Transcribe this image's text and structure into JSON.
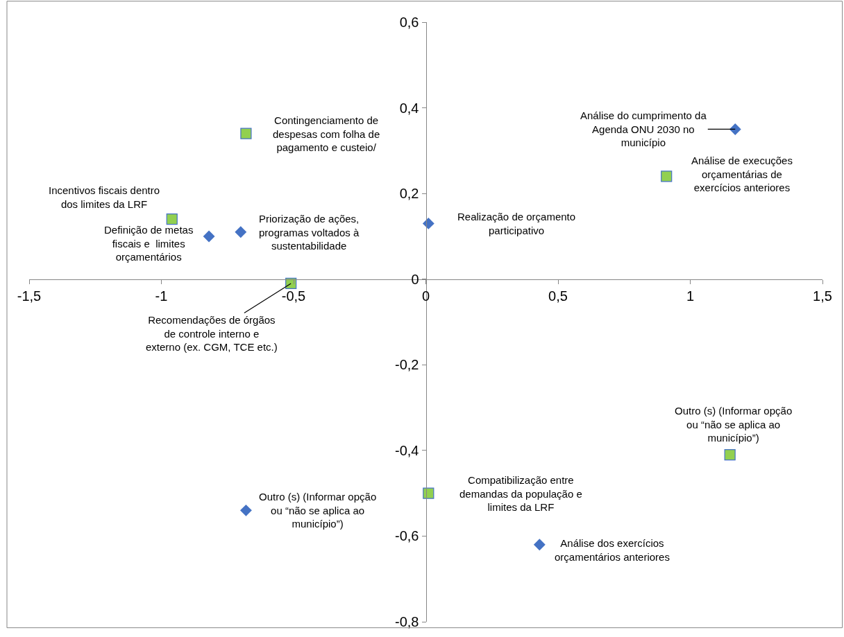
{
  "chart_data": {
    "type": "scatter",
    "series": [
      {
        "color": "#4472c4",
        "marker": "diamond",
        "x": [
          -0.82,
          -0.7,
          0.01,
          1.17,
          -0.68,
          0.43
        ],
        "values": [
          0.1,
          0.11,
          0.13,
          0.35,
          -0.54,
          -0.62
        ]
      },
      {
        "color": "#92d050",
        "marker": "square",
        "x": [
          -0.68,
          -0.96,
          -0.51,
          0.91,
          1.15,
          0.01
        ],
        "values": [
          0.34,
          0.14,
          -0.01,
          0.24,
          -0.41,
          -0.5
        ]
      }
    ],
    "annotations": [
      {
        "text": "Definição de metas\nfiscais e  limites\norçamentários",
        "x": -0.82,
        "y": 0.1
      },
      {
        "text": "Priorização de ações,\nprogramas voltados à\nsustentabilidade",
        "x": -0.7,
        "y": 0.11
      },
      {
        "text": "Realização de orçamento\nparticipativo",
        "x": 0.01,
        "y": 0.13
      },
      {
        "text": "Análise do cumprimento da\nAgenda ONU 2030 no\nmunicípio",
        "x": 1.17,
        "y": 0.35
      },
      {
        "text": "Outro (s) (Informar opção\nou “não se aplica ao\nmunicípio”)",
        "x": -0.68,
        "y": -0.54
      },
      {
        "text": "Análise dos exercícios\norçamentários anteriores",
        "x": 0.43,
        "y": -0.62
      },
      {
        "text": "Contingenciamento de\ndespesas com folha de\npagamento e custeio/",
        "x": -0.68,
        "y": 0.34
      },
      {
        "text": "Incentivos fiscais dentro\ndos limites da LRF",
        "x": -0.96,
        "y": 0.14
      },
      {
        "text": "Recomendações de órgãos\nde controle interno e\nexterno (ex. CGM, TCE etc.)",
        "x": -0.51,
        "y": -0.01
      },
      {
        "text": "Análise de execuções\norçamentárias de\nexercícios anteriores",
        "x": 0.91,
        "y": 0.24
      },
      {
        "text": "Outro (s) (Informar opção\nou “não se aplica ao\nmunicípio”)",
        "x": 1.15,
        "y": -0.41
      },
      {
        "text": "Compatibilização entre\ndemandas da população e\nlimites da LRF",
        "x": 0.01,
        "y": -0.5
      }
    ],
    "xlim": [
      -1.5,
      1.5
    ],
    "xticks": [
      {
        "value": -1.5,
        "label": "-1,5"
      },
      {
        "value": -1,
        "label": "-1"
      },
      {
        "value": -0.5,
        "label": "-0,5"
      },
      {
        "value": 0,
        "label": "0"
      },
      {
        "value": 0.5,
        "label": "0,5"
      },
      {
        "value": 1,
        "label": "1"
      },
      {
        "value": 1.5,
        "label": "1,5"
      }
    ],
    "ylim": [
      -0.8,
      0.6
    ],
    "yticks": [
      {
        "value": -0.8,
        "label": "-0,8"
      },
      {
        "value": -0.6,
        "label": "-0,6"
      },
      {
        "value": -0.4,
        "label": "-0,4"
      },
      {
        "value": -0.2,
        "label": "-0,2"
      },
      {
        "value": 0,
        "label": "0"
      },
      {
        "value": 0.2,
        "label": "0,2"
      },
      {
        "value": 0.4,
        "label": "0,4"
      },
      {
        "value": 0.6,
        "label": "0,6"
      }
    ],
    "tick_labels": "xy"
  }
}
